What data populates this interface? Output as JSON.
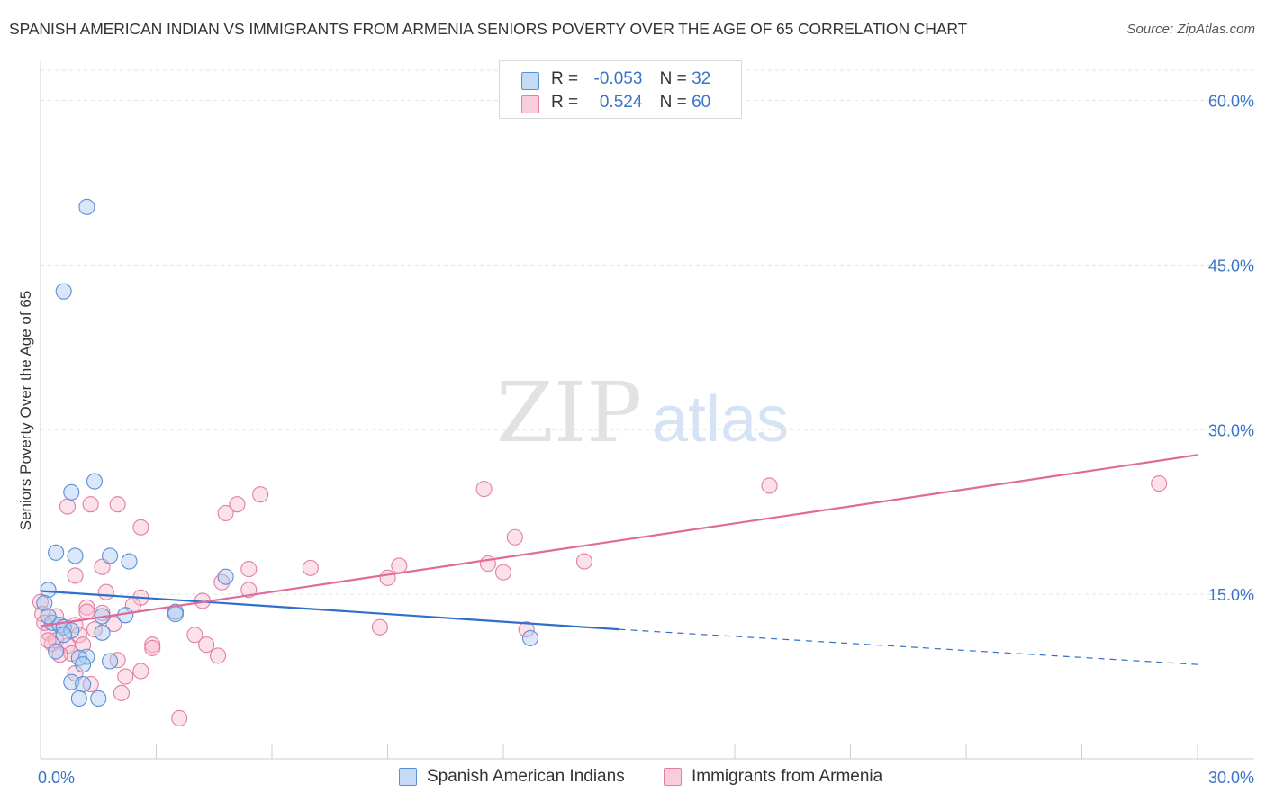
{
  "title": "SPANISH AMERICAN INDIAN VS IMMIGRANTS FROM ARMENIA SENIORS POVERTY OVER THE AGE OF 65 CORRELATION CHART",
  "source": "Source: ZipAtlas.com",
  "watermark": {
    "zip": "ZIP",
    "atlas": "atlas"
  },
  "legend": {
    "r_label": "R =",
    "n_label": "N =",
    "rows": [
      {
        "r": "-0.053",
        "n": "32"
      },
      {
        "r": "0.524",
        "n": "60"
      }
    ]
  },
  "colors": {
    "blue_fill": "#aac9f0",
    "blue_stroke": "#5b8fd6",
    "blue_line": "#2f6fcc",
    "pink_fill": "#f7bcd0",
    "pink_stroke": "#e27fa2",
    "pink_line": "#e06b98",
    "axis_label": "#3b74c6",
    "grid": "#e3e3e3"
  },
  "chart_data": {
    "type": "scatter",
    "title": "SPANISH AMERICAN INDIAN VS IMMIGRANTS FROM ARMENIA SENIORS POVERTY OVER THE AGE OF 65 CORRELATION CHART",
    "xlabel": "",
    "ylabel": "Seniors Poverty Over the Age of 65",
    "xlim": [
      0,
      30
    ],
    "ylim": [
      0,
      63
    ],
    "x_tick_labels": [
      "0.0%",
      "30.0%"
    ],
    "y_ticks": [
      15,
      30,
      45,
      60
    ],
    "y_tick_labels": [
      "15.0%",
      "30.0%",
      "45.0%",
      "60.0%"
    ],
    "grid": true,
    "series": [
      {
        "name": "Spanish American Indians",
        "r": -0.053,
        "n": 32,
        "trend": {
          "x0": 0,
          "y0": 15.3,
          "x1": 15.0,
          "y1": 11.8,
          "dash_to_x": 30,
          "dash_to_y": 8.6
        },
        "points": [
          [
            1.2,
            50.3
          ],
          [
            0.6,
            42.6
          ],
          [
            1.4,
            25.3
          ],
          [
            0.8,
            24.3
          ],
          [
            0.4,
            18.8
          ],
          [
            0.9,
            18.5
          ],
          [
            1.8,
            18.5
          ],
          [
            2.3,
            18.0
          ],
          [
            4.8,
            16.6
          ],
          [
            0.2,
            15.4
          ],
          [
            0.1,
            14.2
          ],
          [
            3.5,
            13.4
          ],
          [
            3.5,
            13.2
          ],
          [
            2.2,
            13.1
          ],
          [
            1.6,
            13.0
          ],
          [
            0.3,
            12.4
          ],
          [
            0.5,
            12.2
          ],
          [
            0.6,
            12.0
          ],
          [
            0.8,
            11.7
          ],
          [
            0.6,
            11.3
          ],
          [
            1.6,
            11.5
          ],
          [
            0.2,
            13.0
          ],
          [
            12.7,
            11.0
          ],
          [
            0.4,
            9.8
          ],
          [
            1.2,
            9.3
          ],
          [
            1.0,
            9.2
          ],
          [
            1.8,
            8.9
          ],
          [
            1.1,
            8.6
          ],
          [
            0.8,
            7.0
          ],
          [
            1.1,
            6.8
          ],
          [
            1.0,
            5.5
          ],
          [
            1.5,
            5.5
          ]
        ]
      },
      {
        "name": "Immigrants from Armenia",
        "r": 0.524,
        "n": 60,
        "trend": {
          "x0": 0,
          "y0": 12.1,
          "x1": 30,
          "y1": 27.7
        },
        "points": [
          [
            29.0,
            25.1
          ],
          [
            18.9,
            24.9
          ],
          [
            11.5,
            24.6
          ],
          [
            5.7,
            24.1
          ],
          [
            5.1,
            23.2
          ],
          [
            2.0,
            23.2
          ],
          [
            1.3,
            23.2
          ],
          [
            0.7,
            23.0
          ],
          [
            4.8,
            22.4
          ],
          [
            2.6,
            21.1
          ],
          [
            12.3,
            20.2
          ],
          [
            14.1,
            18.0
          ],
          [
            11.6,
            17.8
          ],
          [
            9.3,
            17.6
          ],
          [
            7.0,
            17.4
          ],
          [
            5.4,
            17.3
          ],
          [
            1.6,
            17.5
          ],
          [
            12.0,
            17.0
          ],
          [
            0.9,
            16.7
          ],
          [
            9.0,
            16.5
          ],
          [
            4.7,
            16.1
          ],
          [
            5.4,
            15.4
          ],
          [
            1.7,
            15.2
          ],
          [
            2.6,
            14.7
          ],
          [
            4.2,
            14.4
          ],
          [
            2.4,
            14.0
          ],
          [
            1.2,
            13.8
          ],
          [
            1.2,
            13.4
          ],
          [
            1.6,
            13.3
          ],
          [
            0.4,
            13.0
          ],
          [
            1.9,
            12.3
          ],
          [
            0.9,
            12.2
          ],
          [
            0.6,
            12.0
          ],
          [
            8.8,
            12.0
          ],
          [
            12.6,
            11.8
          ],
          [
            1.4,
            11.8
          ],
          [
            0.2,
            11.5
          ],
          [
            4.0,
            11.3
          ],
          [
            1.0,
            11.3
          ],
          [
            0.4,
            10.8
          ],
          [
            0.3,
            10.5
          ],
          [
            1.1,
            10.4
          ],
          [
            0.7,
            10.3
          ],
          [
            2.9,
            10.4
          ],
          [
            2.9,
            10.1
          ],
          [
            4.3,
            10.4
          ],
          [
            0.8,
            9.6
          ],
          [
            0.5,
            9.5
          ],
          [
            4.6,
            9.4
          ],
          [
            2.0,
            9.0
          ],
          [
            2.6,
            8.0
          ],
          [
            0.9,
            7.8
          ],
          [
            2.2,
            7.5
          ],
          [
            1.3,
            6.8
          ],
          [
            2.1,
            6.0
          ],
          [
            3.6,
            3.7
          ],
          [
            0.2,
            10.8
          ],
          [
            0.0,
            14.3
          ],
          [
            0.05,
            13.2
          ],
          [
            0.1,
            12.4
          ]
        ]
      }
    ]
  }
}
